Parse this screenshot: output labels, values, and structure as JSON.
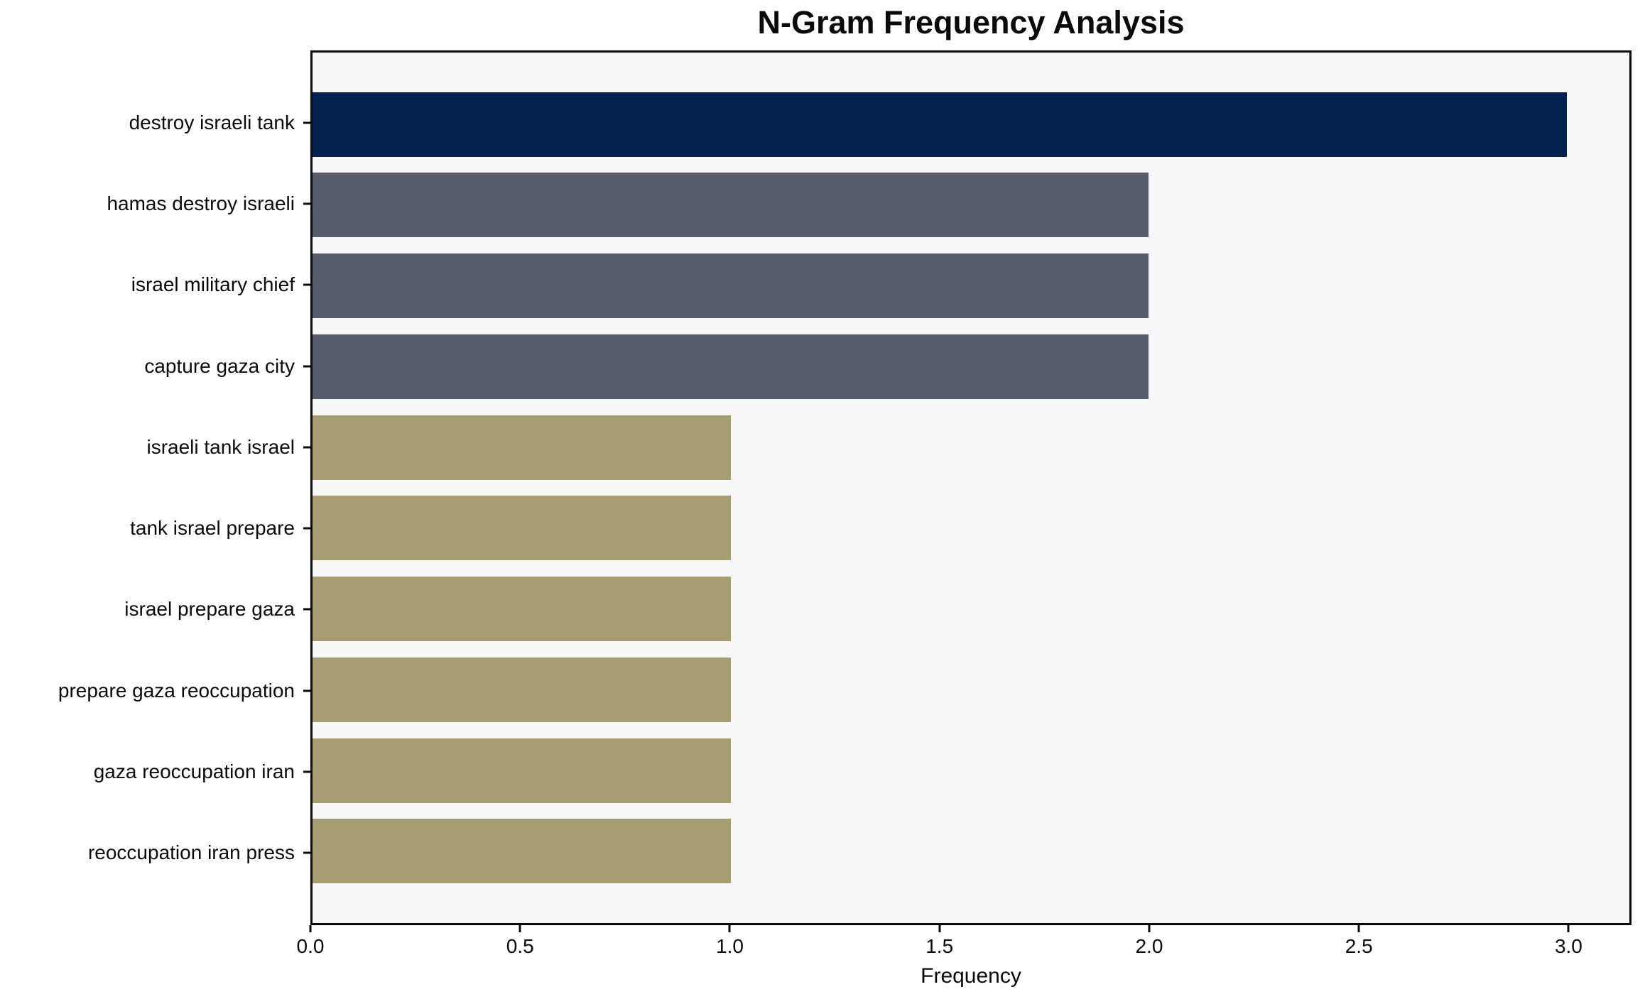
{
  "chart_data": {
    "type": "bar",
    "orientation": "horizontal",
    "title": "N-Gram Frequency Analysis",
    "xlabel": "Frequency",
    "ylabel": "",
    "categories": [
      "destroy israeli tank",
      "hamas destroy israeli",
      "israel military chief",
      "capture gaza city",
      "israeli tank israel",
      "tank israel prepare",
      "israel prepare gaza",
      "prepare gaza reoccupation",
      "gaza reoccupation iran",
      "reoccupation iran press"
    ],
    "values": [
      3,
      2,
      2,
      2,
      1,
      1,
      1,
      1,
      1,
      1
    ],
    "bar_colors": [
      "#02234D",
      "#565D6C",
      "#565D6C",
      "#565D6C",
      "#A79D72",
      "#A79D72",
      "#A79D72",
      "#A79D72",
      "#A79D72",
      "#A79D72"
    ],
    "x_tick_values": [
      0.0,
      0.5,
      1.0,
      1.5,
      2.0,
      2.5,
      3.0
    ],
    "x_tick_labels": [
      "0.0",
      "0.5",
      "1.0",
      "1.5",
      "2.0",
      "2.5",
      "3.0"
    ],
    "xlim": [
      0,
      3.15
    ],
    "bar_band_fraction": 0.8,
    "grid": false,
    "legend_position": "none",
    "colors": {
      "plot_background": "#F7F7F9",
      "figure_background": "#FFFFFF",
      "axis": "#0A0A0A",
      "text": "#0A0A0A"
    }
  }
}
